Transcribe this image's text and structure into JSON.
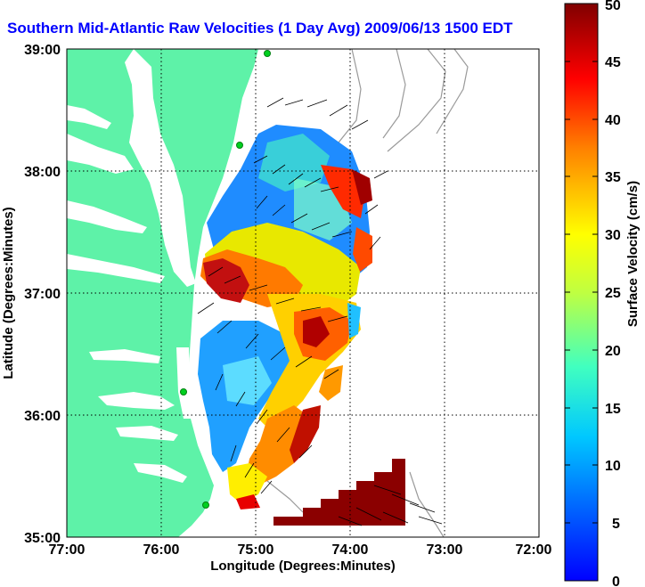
{
  "title": "Southern Mid-Atlantic Raw Velocities (1 Day Avg) 2009/06/13 1500 EDT",
  "map": {
    "xlabel": "Longitude (Degrees:Minutes)",
    "ylabel": "Latitude (Degrees:Minutes)",
    "x_ticks": [
      "77:00",
      "76:00",
      "75:00",
      "74:00",
      "73:00",
      "72:00"
    ],
    "y_ticks": [
      "39:00",
      "38:00",
      "37:00",
      "36:00",
      "35:00"
    ],
    "lon_range": [
      -77,
      -72
    ],
    "lat_range": [
      35,
      39
    ],
    "land_color": "#5ef2a8",
    "grid": "dotted"
  },
  "colorbar": {
    "label": "Surface Velocity (cm/s)",
    "min": 0,
    "max": 50,
    "ticks": [
      "50",
      "45",
      "40",
      "35",
      "30",
      "25",
      "20",
      "15",
      "10",
      "5",
      "0"
    ],
    "colormap": "jet"
  }
}
